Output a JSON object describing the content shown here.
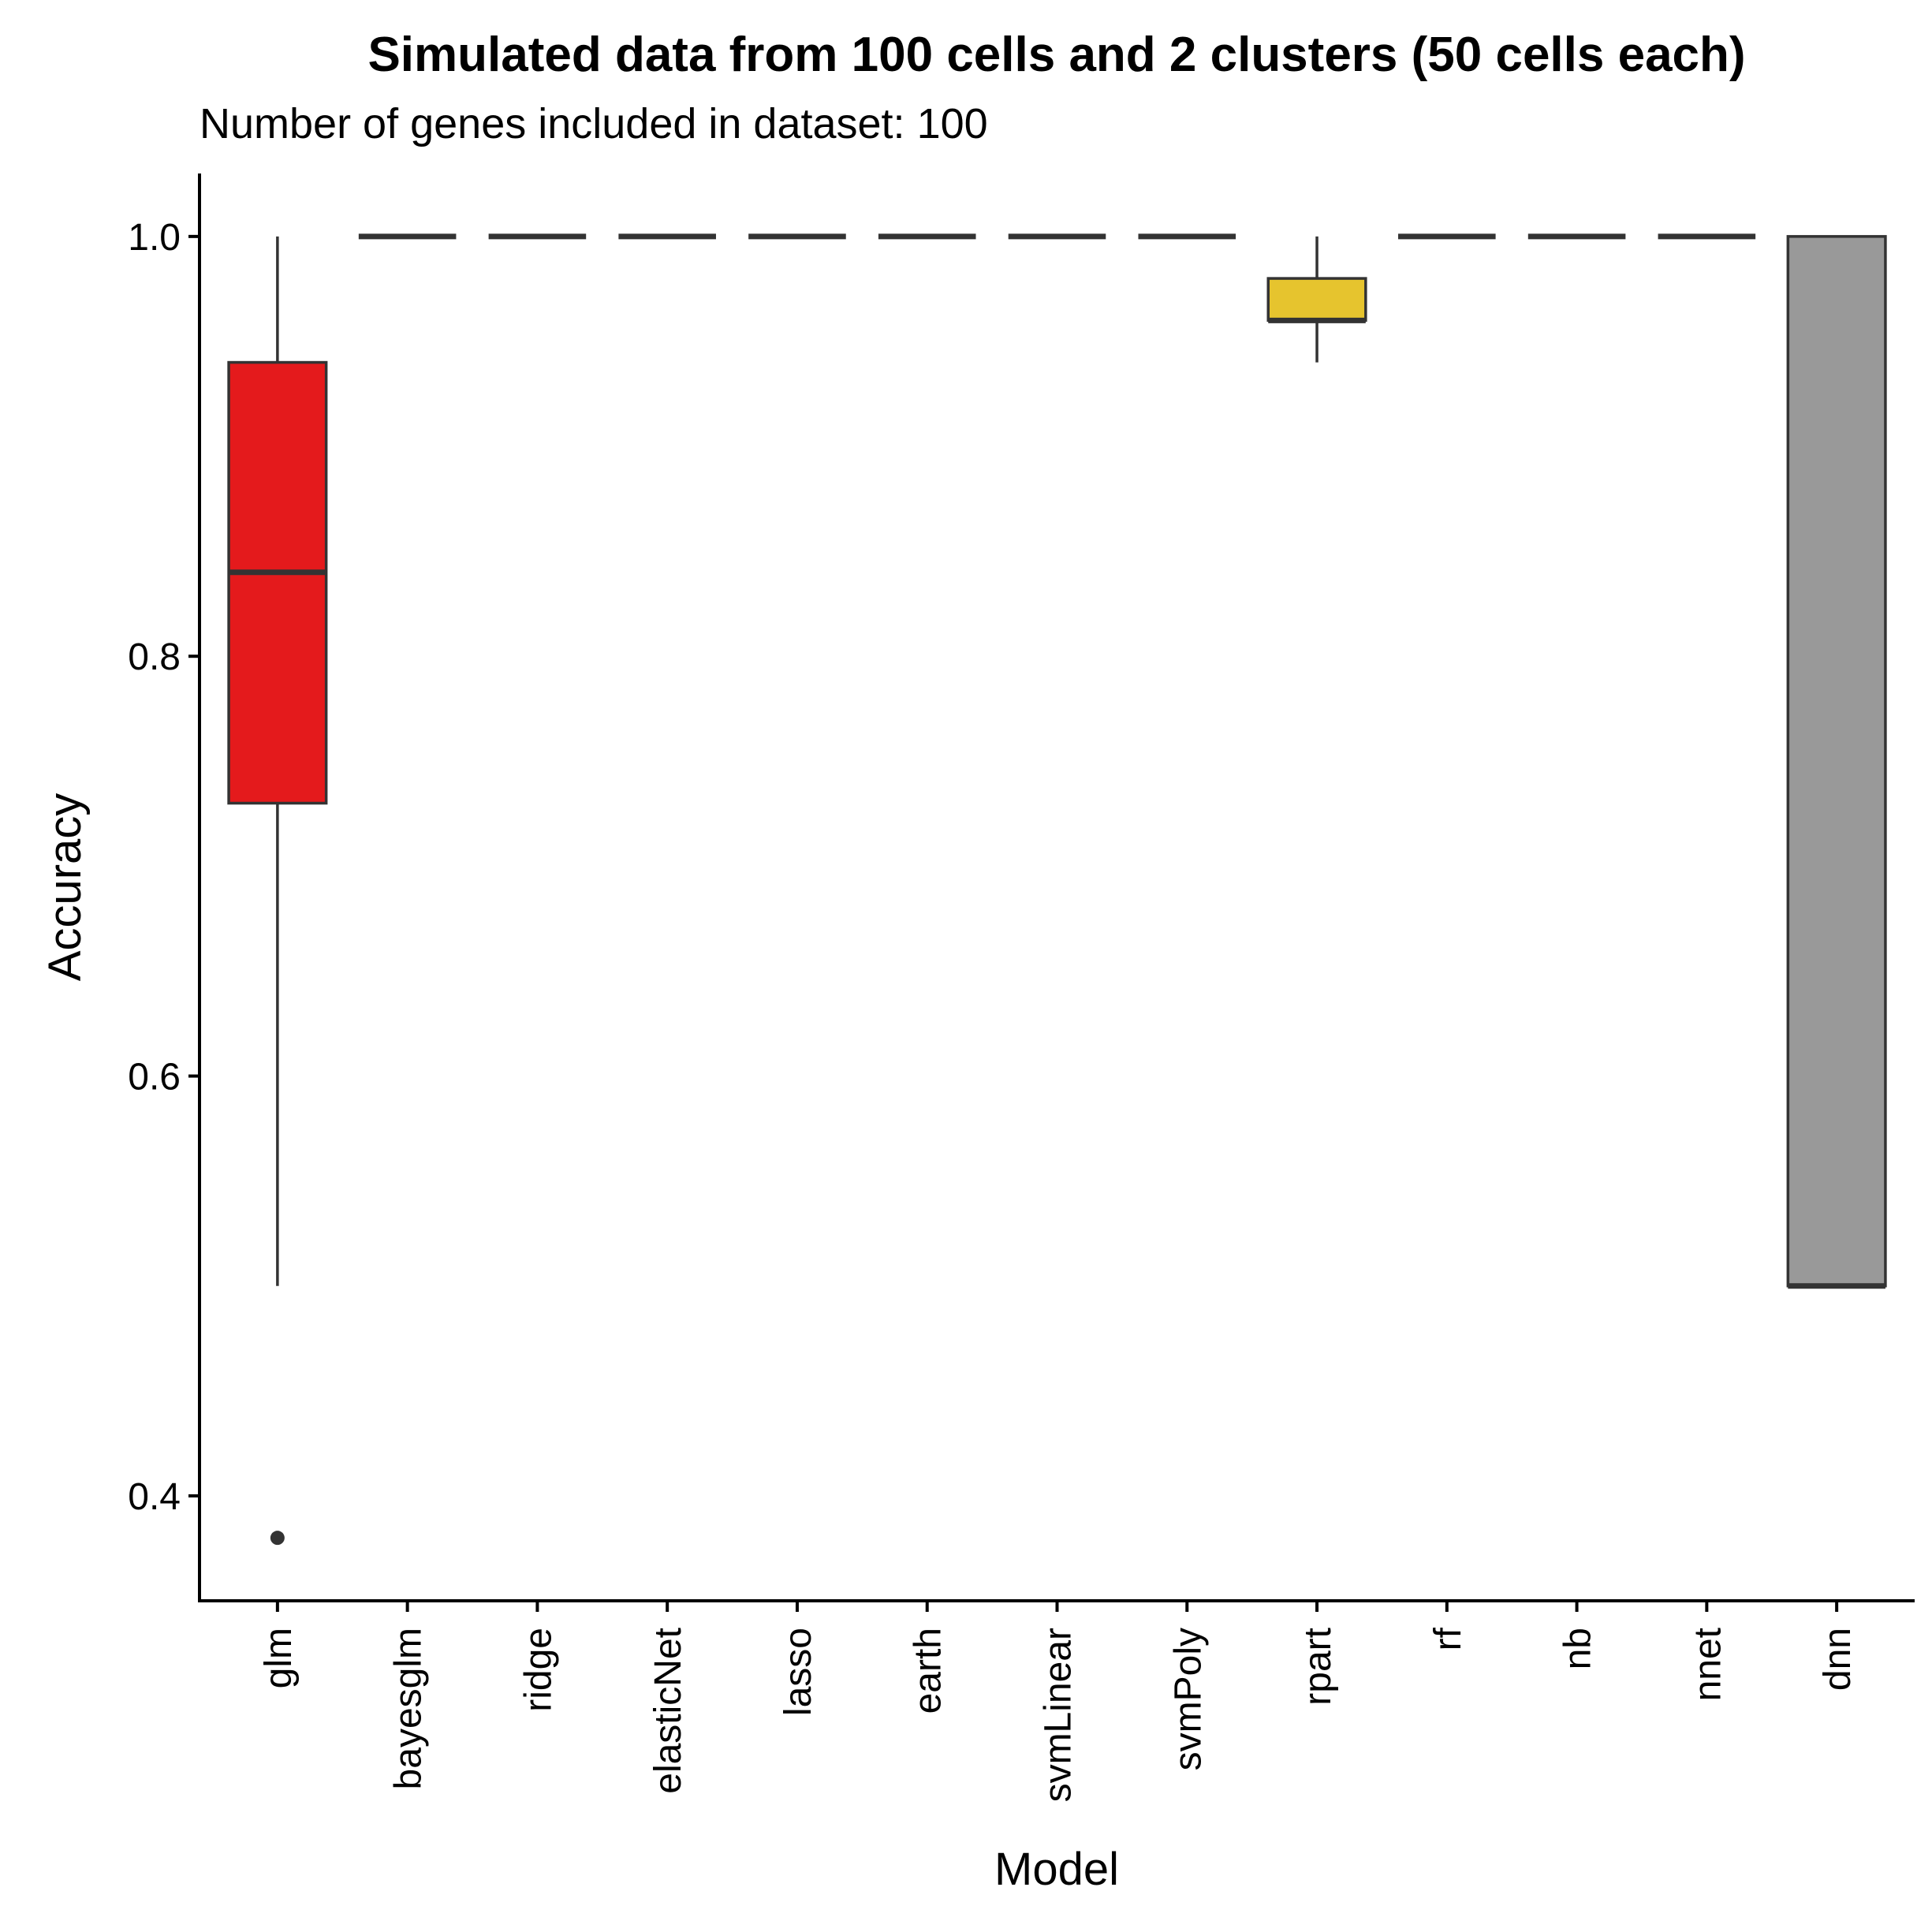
{
  "chart_data": {
    "type": "boxplot",
    "title": "Simulated data from 100 cells and 2 clusters (50 cells each)",
    "subtitle": "Number of genes included in dataset: 100",
    "xlabel": "Model",
    "ylabel": "Accuracy",
    "ylim": [
      0.35,
      1.03
    ],
    "yticks": [
      0.4,
      0.6,
      0.8,
      1.0
    ],
    "ytick_labels": [
      "0.4",
      "0.6",
      "0.8",
      "1.0"
    ],
    "grid": false,
    "categories": [
      "glm",
      "bayesglm",
      "ridge",
      "elasticNet",
      "lasso",
      "earth",
      "svmLinear",
      "svmPoly",
      "rpart",
      "rf",
      "nb",
      "nnet",
      "dnn"
    ],
    "boxes": [
      {
        "name": "glm",
        "min": 0.5,
        "q1": 0.73,
        "median": 0.84,
        "q3": 0.94,
        "max": 1.0,
        "outliers": [
          0.38
        ],
        "color": "#e41a1c"
      },
      {
        "name": "bayesglm",
        "min": 1.0,
        "q1": 1.0,
        "median": 1.0,
        "q3": 1.0,
        "max": 1.0,
        "outliers": [],
        "color": "#377eb8"
      },
      {
        "name": "ridge",
        "min": 1.0,
        "q1": 1.0,
        "median": 1.0,
        "q3": 1.0,
        "max": 1.0,
        "outliers": [],
        "color": "#4daf4a"
      },
      {
        "name": "elasticNet",
        "min": 1.0,
        "q1": 1.0,
        "median": 1.0,
        "q3": 1.0,
        "max": 1.0,
        "outliers": [],
        "color": "#984ea3"
      },
      {
        "name": "lasso",
        "min": 1.0,
        "q1": 1.0,
        "median": 1.0,
        "q3": 1.0,
        "max": 1.0,
        "outliers": [],
        "color": "#ff7f00"
      },
      {
        "name": "earth",
        "min": 1.0,
        "q1": 1.0,
        "median": 1.0,
        "q3": 1.0,
        "max": 1.0,
        "outliers": [],
        "color": "#ffff33"
      },
      {
        "name": "svmLinear",
        "min": 1.0,
        "q1": 1.0,
        "median": 1.0,
        "q3": 1.0,
        "max": 1.0,
        "outliers": [],
        "color": "#a65628"
      },
      {
        "name": "svmPoly",
        "min": 1.0,
        "q1": 1.0,
        "median": 1.0,
        "q3": 1.0,
        "max": 1.0,
        "outliers": [],
        "color": "#f781bf"
      },
      {
        "name": "rpart",
        "min": 0.94,
        "q1": 0.96,
        "median": 0.96,
        "q3": 0.98,
        "max": 1.0,
        "outliers": [],
        "color": "#e6c42e"
      },
      {
        "name": "rf",
        "min": 1.0,
        "q1": 1.0,
        "median": 1.0,
        "q3": 1.0,
        "max": 1.0,
        "outliers": [],
        "color": "#999999"
      },
      {
        "name": "nb",
        "min": 1.0,
        "q1": 1.0,
        "median": 1.0,
        "q3": 1.0,
        "max": 1.0,
        "outliers": [],
        "color": "#66c2a5"
      },
      {
        "name": "nnet",
        "min": 1.0,
        "q1": 1.0,
        "median": 1.0,
        "q3": 1.0,
        "max": 1.0,
        "outliers": [],
        "color": "#fc8d62"
      },
      {
        "name": "dnn",
        "min": 0.5,
        "q1": 0.5,
        "median": 0.5,
        "q3": 1.0,
        "max": 1.0,
        "outliers": [],
        "color": "#999999"
      }
    ],
    "colors": {
      "line": "#333333",
      "axis": "#000000"
    }
  }
}
